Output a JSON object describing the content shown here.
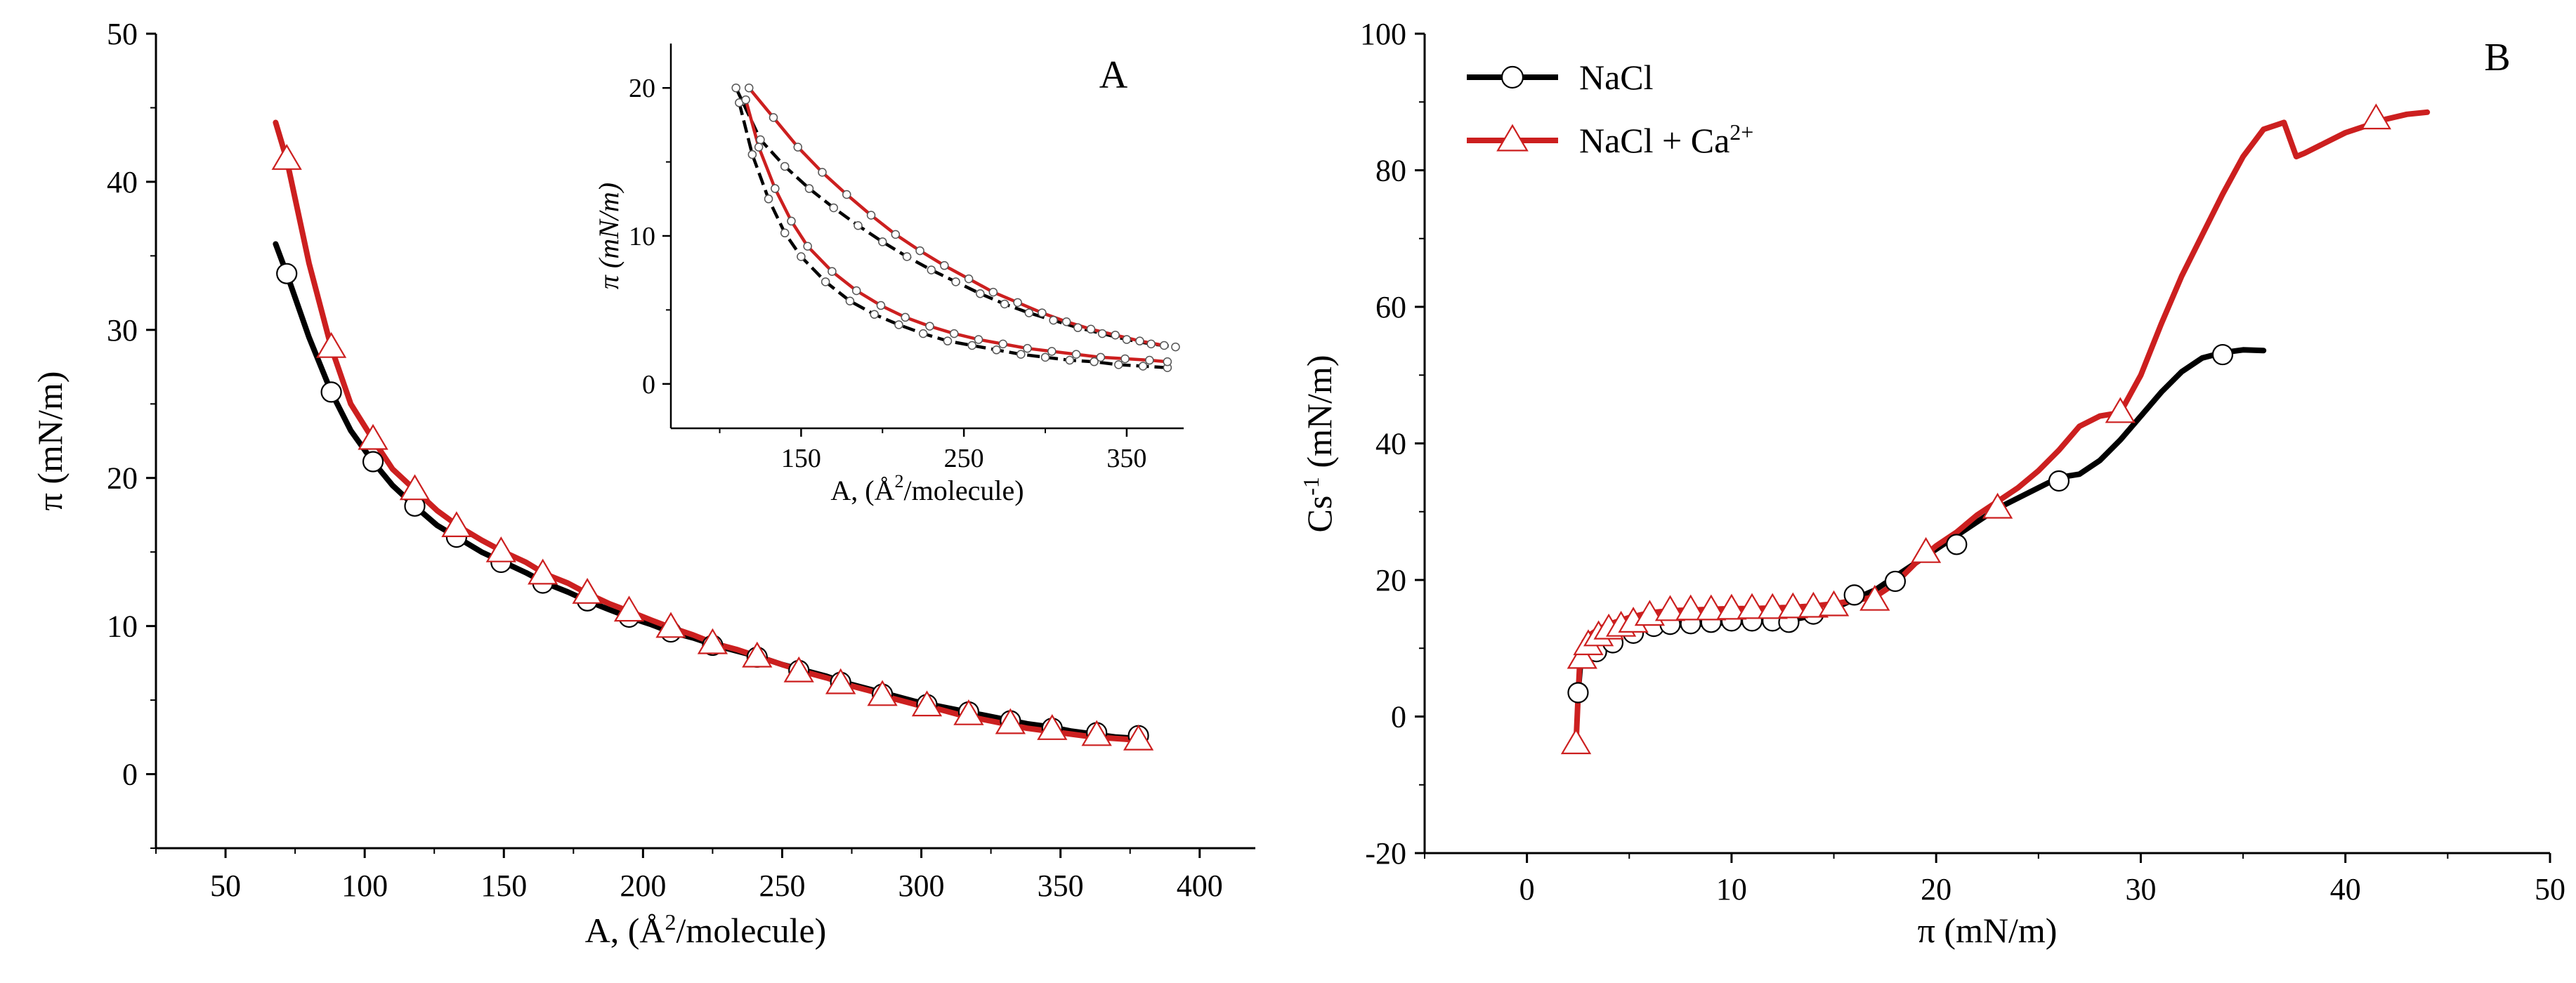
{
  "chart_data": [
    {
      "panel": "A",
      "type": "line",
      "panel_label": "A",
      "xlabel_pre": "A, (Å",
      "xlabel_sup": "2",
      "xlabel_post": "/molecule)",
      "ylabel": "π (mN/m)",
      "xlim": [
        25,
        420
      ],
      "ylim": [
        -5,
        50
      ],
      "x_ticks": [
        "50",
        "100",
        "150",
        "200",
        "250",
        "300",
        "350",
        "400"
      ],
      "x_tick_values": [
        50,
        100,
        150,
        200,
        250,
        300,
        350,
        400
      ],
      "y_ticks": [
        "0",
        "10",
        "20",
        "30",
        "40",
        "50"
      ],
      "y_tick_values": [
        0,
        10,
        20,
        30,
        40,
        50
      ],
      "series": [
        {
          "name": "NaCl",
          "color": "#000000",
          "marker": "circle",
          "x": [
            68,
            72,
            80,
            88,
            95,
            103,
            110,
            118,
            126,
            134,
            142,
            150,
            158,
            165,
            173,
            180,
            188,
            195,
            203,
            210,
            218,
            226,
            234,
            242,
            250,
            258,
            266,
            274,
            282,
            290,
            298,
            306,
            314,
            322,
            330,
            338,
            346,
            354,
            362,
            370,
            378
          ],
          "y": [
            35.8,
            33.8,
            29.5,
            25.8,
            23.2,
            21.1,
            19.5,
            18.1,
            16.8,
            15.9,
            15.0,
            14.3,
            13.6,
            12.9,
            12.3,
            11.7,
            11.1,
            10.6,
            10.1,
            9.6,
            9.2,
            8.7,
            8.3,
            7.9,
            7.4,
            7.0,
            6.6,
            6.1,
            5.7,
            5.3,
            4.9,
            4.6,
            4.3,
            4.0,
            3.7,
            3.4,
            3.2,
            2.9,
            2.7,
            2.5,
            2.4
          ],
          "marker_x": [
            72,
            88,
            103,
            118,
            133,
            149,
            164,
            180,
            195,
            210,
            225,
            241,
            256,
            271,
            286,
            302,
            317,
            332,
            347,
            363,
            378
          ],
          "marker_y": [
            33.8,
            25.8,
            21.1,
            18.1,
            16.0,
            14.3,
            12.9,
            11.7,
            10.6,
            9.6,
            8.7,
            7.9,
            7.0,
            6.2,
            5.4,
            4.7,
            4.2,
            3.6,
            3.1,
            2.8,
            2.6
          ]
        },
        {
          "name": "NaCl + Ca2+",
          "color": "#cc1f1f",
          "marker": "triangle",
          "x": [
            68,
            72,
            80,
            88,
            95,
            103,
            110,
            118,
            126,
            134,
            142,
            150,
            158,
            165,
            173,
            180,
            188,
            195,
            203,
            210,
            218,
            226,
            234,
            242,
            250,
            258,
            266,
            274,
            282,
            290,
            298,
            306,
            314,
            322,
            330,
            338,
            346,
            354,
            362,
            370,
            378
          ],
          "y": [
            44.0,
            41.5,
            34.5,
            28.8,
            25.0,
            22.6,
            20.6,
            19.2,
            17.8,
            16.7,
            15.8,
            15.0,
            14.3,
            13.5,
            12.9,
            12.2,
            11.5,
            11.0,
            10.4,
            9.9,
            9.4,
            8.8,
            8.4,
            7.9,
            7.4,
            6.9,
            6.5,
            6.0,
            5.6,
            5.1,
            4.7,
            4.4,
            4.0,
            3.7,
            3.4,
            3.1,
            2.9,
            2.7,
            2.5,
            2.4,
            2.3
          ],
          "marker_x": [
            72,
            88,
            103,
            118,
            133,
            149,
            164,
            180,
            195,
            210,
            225,
            241,
            256,
            271,
            286,
            302,
            317,
            332,
            347,
            363,
            378
          ],
          "marker_y": [
            41.5,
            28.8,
            22.6,
            19.2,
            16.7,
            15.0,
            13.5,
            12.2,
            11.0,
            9.9,
            8.8,
            7.9,
            6.9,
            6.1,
            5.3,
            4.6,
            4.0,
            3.4,
            3.0,
            2.6,
            2.3
          ]
        }
      ],
      "inset": {
        "xlabel_pre": "A,  (Å",
        "xlabel_sup": "2",
        "xlabel_post": "/molecule)",
        "ylabel": "π (mN/m)",
        "xlim": [
          70,
          385
        ],
        "ylim": [
          -3,
          23
        ],
        "x_ticks": [
          "150",
          "250",
          "350"
        ],
        "x_tick_values": [
          150,
          250,
          350
        ],
        "y_ticks": [
          "0",
          "10",
          "20"
        ],
        "y_tick_values": [
          0,
          10,
          20
        ],
        "series": [
          {
            "name": "black-upper",
            "color": "#000000",
            "x": [
              110,
              125,
              140,
              155,
              170,
              185,
              200,
              215,
              230,
              245,
              260,
              275,
              290,
              305,
              320,
              335,
              350,
              365,
              380
            ],
            "y": [
              20.0,
              16.5,
              14.7,
              13.2,
              11.9,
              10.7,
              9.6,
              8.6,
              7.7,
              6.9,
              6.1,
              5.4,
              4.8,
              4.3,
              3.8,
              3.4,
              3.0,
              2.7,
              2.5
            ]
          },
          {
            "name": "red-upper",
            "color": "#cc1f1f",
            "x": [
              118,
              133,
              148,
              163,
              178,
              193,
              208,
              223,
              238,
              253,
              268,
              283,
              298,
              313,
              328,
              343,
              358,
              373
            ],
            "y": [
              20.0,
              18.0,
              16.0,
              14.3,
              12.8,
              11.4,
              10.1,
              9.0,
              8.0,
              7.1,
              6.2,
              5.5,
              4.8,
              4.2,
              3.7,
              3.3,
              2.9,
              2.6
            ]
          },
          {
            "name": "black-lower",
            "color": "#000000",
            "x": [
              112,
              120,
              130,
              140,
              150,
              165,
              180,
              195,
              210,
              225,
              240,
              255,
              270,
              285,
              300,
              315,
              330,
              345,
              360,
              375
            ],
            "y": [
              19.0,
              15.5,
              12.5,
              10.2,
              8.6,
              6.9,
              5.6,
              4.7,
              4.0,
              3.4,
              2.9,
              2.6,
              2.3,
              2.0,
              1.8,
              1.6,
              1.5,
              1.3,
              1.2,
              1.1
            ]
          },
          {
            "name": "red-lower",
            "color": "#cc1f1f",
            "x": [
              116,
              124,
              134,
              144,
              154,
              169,
              184,
              199,
              214,
              229,
              244,
              259,
              274,
              289,
              304,
              319,
              334,
              349,
              364,
              375
            ],
            "y": [
              19.2,
              16.0,
              13.2,
              11.0,
              9.3,
              7.6,
              6.3,
              5.3,
              4.5,
              3.9,
              3.4,
              3.0,
              2.7,
              2.4,
              2.2,
              2.0,
              1.8,
              1.7,
              1.6,
              1.5
            ]
          }
        ]
      }
    },
    {
      "panel": "B",
      "type": "line",
      "panel_label": "B",
      "xlabel": "π (mN/m)",
      "ylabel_pre": "Cs",
      "ylabel_sup": "-1",
      "ylabel_post": " (mN/m)",
      "xlim": [
        -5,
        50
      ],
      "ylim": [
        -20,
        100
      ],
      "x_ticks": [
        "0",
        "10",
        "20",
        "30",
        "40",
        "50"
      ],
      "x_tick_values": [
        0,
        10,
        20,
        30,
        40,
        50
      ],
      "y_ticks": [
        "-20",
        "0",
        "20",
        "40",
        "60",
        "80",
        "100"
      ],
      "y_tick_values": [
        -20,
        0,
        20,
        40,
        60,
        80,
        100
      ],
      "legend": [
        {
          "label": "NaCl",
          "sup": "",
          "color": "#000000",
          "marker": "circle"
        },
        {
          "label": "NaCl + Ca",
          "sup": "2+",
          "color": "#cc1f1f",
          "marker": "triangle"
        }
      ],
      "series": [
        {
          "name": "NaCl",
          "color": "#000000",
          "marker": "circle",
          "x": [
            2.5,
            2.6,
            2.8,
            3.1,
            3.5,
            4.0,
            5.0,
            6.0,
            7.0,
            8.0,
            9.0,
            10.0,
            11.0,
            12.0,
            13.0,
            14.0,
            15.0,
            16.0,
            17.0,
            18.0,
            19.0,
            20.0,
            21.0,
            22.0,
            23.0,
            24.0,
            25.0,
            26.0,
            27.0,
            28.0,
            29.0,
            30.0,
            31.0,
            32.0,
            33.0,
            34.0,
            35.0,
            36.0
          ],
          "y": [
            3.5,
            7.0,
            10.0,
            11.2,
            12.0,
            12.5,
            13.0,
            13.2,
            13.4,
            13.5,
            13.6,
            13.8,
            13.9,
            14.0,
            14.2,
            14.8,
            15.8,
            17.2,
            18.5,
            20.5,
            22.5,
            24.5,
            26.5,
            28.5,
            30.5,
            32.0,
            33.5,
            35.0,
            35.5,
            37.5,
            40.5,
            44.0,
            47.5,
            50.5,
            52.5,
            53.3,
            53.7,
            53.6
          ],
          "marker_x": [
            2.5,
            3.4,
            4.2,
            5.2,
            6.2,
            7.0,
            8.0,
            9.0,
            10.0,
            11.0,
            12.0,
            12.8,
            14.0,
            16.0,
            18.0,
            21.0,
            26.0,
            34.0
          ],
          "marker_y": [
            3.5,
            9.5,
            10.8,
            12.2,
            13.2,
            13.5,
            13.6,
            13.8,
            14.0,
            14.0,
            14.0,
            13.8,
            15.0,
            17.8,
            19.8,
            25.2,
            34.5,
            53.0
          ]
        },
        {
          "name": "NaCl + Ca2+",
          "color": "#cc1f1f",
          "marker": "triangle",
          "x": [
            2.4,
            2.5,
            2.6,
            2.8,
            3.1,
            3.5,
            4.0,
            5.0,
            6.0,
            7.0,
            8.0,
            9.0,
            10.0,
            11.0,
            12.0,
            13.0,
            14.0,
            15.0,
            16.0,
            17.0,
            18.0,
            19.0,
            20.0,
            21.0,
            22.0,
            23.0,
            24.0,
            25.0,
            26.0,
            27.0,
            28.0,
            29.0,
            30.0,
            31.0,
            32.0,
            33.0,
            34.0,
            35.0,
            36.0,
            37.0,
            37.6,
            38.0,
            39.0,
            40.0,
            41.0,
            42.0,
            43.0,
            44.0
          ],
          "y": [
            -4.0,
            3.0,
            9.0,
            11.0,
            12.0,
            12.8,
            13.5,
            14.5,
            15.2,
            15.5,
            15.6,
            15.7,
            15.8,
            15.8,
            15.9,
            16.0,
            16.2,
            16.5,
            17.0,
            17.5,
            19.5,
            22.5,
            25.0,
            27.0,
            29.5,
            31.5,
            33.5,
            36.0,
            39.0,
            42.5,
            44.0,
            44.5,
            50.0,
            57.5,
            64.5,
            70.5,
            76.5,
            82.0,
            86.0,
            87.0,
            82.0,
            82.5,
            84.0,
            85.5,
            86.5,
            87.5,
            88.2,
            88.5
          ],
          "marker_x": [
            2.4,
            2.7,
            3.0,
            3.5,
            4.0,
            4.6,
            5.2,
            6.0,
            7.0,
            8.0,
            9.0,
            10.0,
            11.0,
            12.0,
            13.0,
            14.0,
            15.0,
            17.0,
            19.5,
            23.0,
            29.0,
            41.5
          ],
          "marker_y": [
            -4.0,
            8.5,
            10.5,
            11.8,
            12.8,
            13.2,
            13.8,
            14.8,
            15.5,
            15.6,
            15.6,
            15.7,
            15.8,
            15.8,
            15.9,
            16.0,
            16.2,
            17.0,
            24.0,
            30.5,
            44.5,
            87.5
          ]
        }
      ]
    }
  ]
}
